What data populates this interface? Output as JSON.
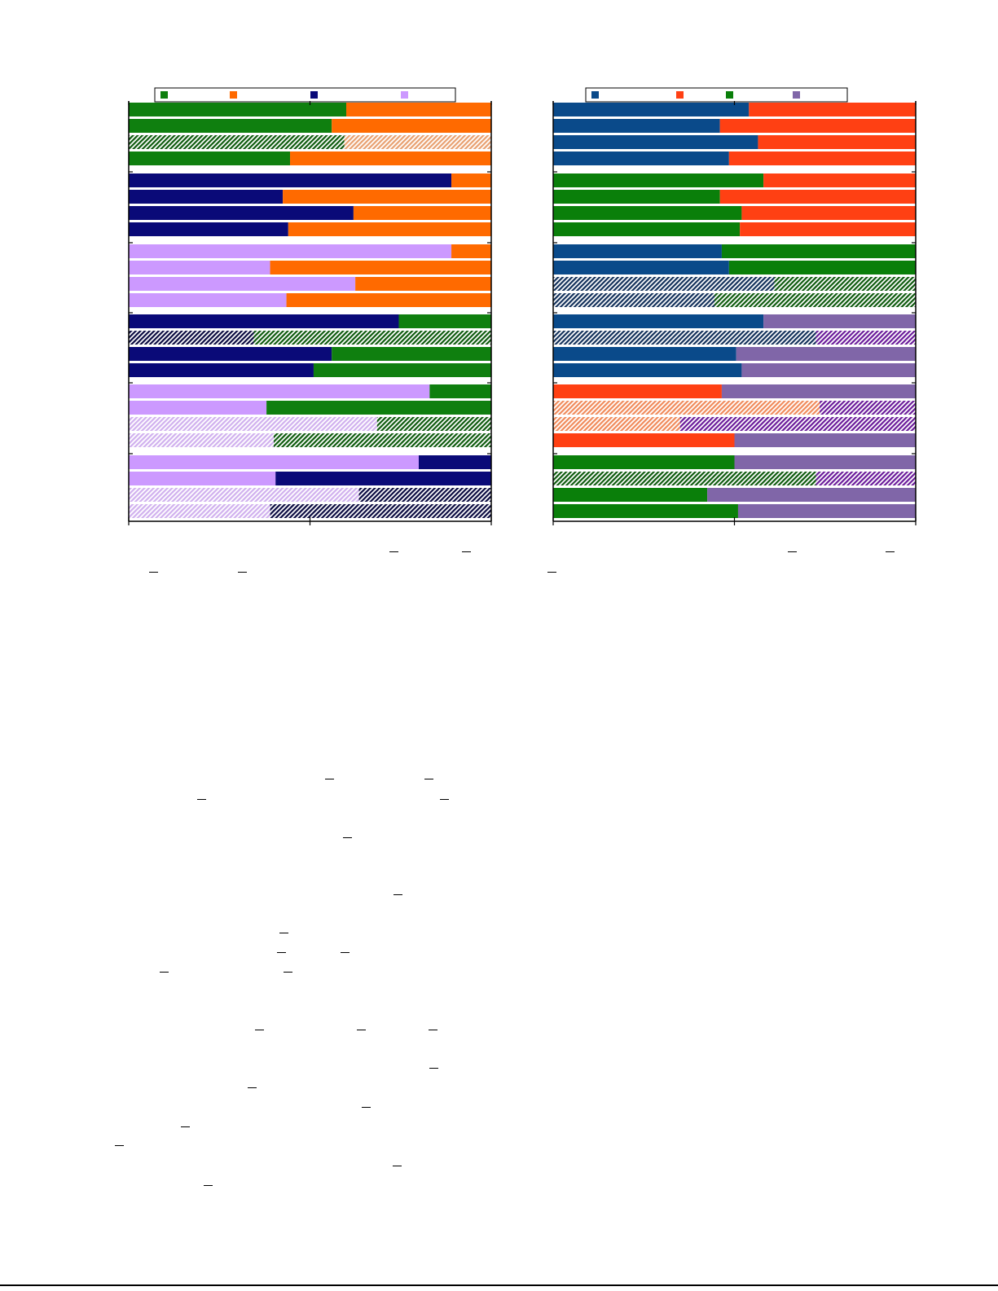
{
  "colors": {
    "left": {
      "green": "#0f7f0f",
      "orange": "#ff6a00",
      "navy": "#0a0a78",
      "lilac": "#cc99ff"
    },
    "right": {
      "blue": "#0a4a8a",
      "red": "#ff4013",
      "green": "#0a7f0a",
      "purple": "#8066a8"
    },
    "hatch": {
      "green": "#0d5a0d",
      "orange": "#e8a070",
      "navy": "#0a0a40",
      "lilac": "#d0b0ee",
      "blue": "#12305a",
      "red": "#f08a5a",
      "purple": "#6a1a9a"
    }
  },
  "chart_data": [
    {
      "type": "bar",
      "orientation": "horizontal",
      "stacked": true,
      "percent": true,
      "xlim": [
        0,
        1
      ],
      "grid": false,
      "legend": {
        "position": "top",
        "entries": [
          {
            "color": "green",
            "label": ""
          },
          {
            "color": "orange",
            "label": ""
          },
          {
            "color": "navy",
            "label": ""
          },
          {
            "color": "lilac",
            "label": ""
          }
        ]
      },
      "groups": [
        {
          "bars": [
            {
              "left": "green",
              "right": "orange",
              "value": 0.6,
              "hatched": false
            },
            {
              "left": "green",
              "right": "orange",
              "value": 0.56,
              "hatched": false
            },
            {
              "left": "green",
              "right": "orange",
              "value": 0.595,
              "hatched": true
            },
            {
              "left": "green",
              "right": "orange",
              "value": 0.445,
              "hatched": false
            }
          ]
        },
        {
          "bars": [
            {
              "left": "navy",
              "right": "orange",
              "value": 0.89,
              "hatched": false
            },
            {
              "left": "navy",
              "right": "orange",
              "value": 0.425,
              "hatched": false
            },
            {
              "left": "navy",
              "right": "orange",
              "value": 0.62,
              "hatched": false
            },
            {
              "left": "navy",
              "right": "orange",
              "value": 0.44,
              "hatched": false
            }
          ]
        },
        {
          "bars": [
            {
              "left": "lilac",
              "right": "orange",
              "value": 0.89,
              "hatched": false
            },
            {
              "left": "lilac",
              "right": "orange",
              "value": 0.39,
              "hatched": false
            },
            {
              "left": "lilac",
              "right": "orange",
              "value": 0.625,
              "hatched": false
            },
            {
              "left": "lilac",
              "right": "orange",
              "value": 0.435,
              "hatched": false
            }
          ]
        },
        {
          "bars": [
            {
              "left": "navy",
              "right": "green",
              "value": 0.745,
              "hatched": false
            },
            {
              "left": "navy",
              "right": "green",
              "value": 0.345,
              "hatched": true
            },
            {
              "left": "navy",
              "right": "green",
              "value": 0.56,
              "hatched": false
            },
            {
              "left": "navy",
              "right": "green",
              "value": 0.51,
              "hatched": false
            }
          ]
        },
        {
          "bars": [
            {
              "left": "lilac",
              "right": "green",
              "value": 0.83,
              "hatched": false
            },
            {
              "left": "lilac",
              "right": "green",
              "value": 0.38,
              "hatched": false
            },
            {
              "left": "lilac",
              "right": "green",
              "value": 0.685,
              "hatched": true
            },
            {
              "left": "lilac",
              "right": "green",
              "value": 0.4,
              "hatched": true
            }
          ]
        },
        {
          "bars": [
            {
              "left": "lilac",
              "right": "navy",
              "value": 0.8,
              "hatched": false
            },
            {
              "left": "lilac",
              "right": "navy",
              "value": 0.405,
              "hatched": false
            },
            {
              "left": "lilac",
              "right": "navy",
              "value": 0.635,
              "hatched": true
            },
            {
              "left": "lilac",
              "right": "navy",
              "value": 0.39,
              "hatched": true
            }
          ]
        }
      ]
    },
    {
      "type": "bar",
      "orientation": "horizontal",
      "stacked": true,
      "percent": true,
      "xlim": [
        0,
        1
      ],
      "grid": false,
      "legend": {
        "position": "top",
        "entries": [
          {
            "color": "blue",
            "label": ""
          },
          {
            "color": "red",
            "label": ""
          },
          {
            "color": "green",
            "label": ""
          },
          {
            "color": "purple",
            "label": ""
          }
        ]
      },
      "groups": [
        {
          "bars": [
            {
              "left": "blue",
              "right": "red",
              "value": 0.54,
              "hatched": false
            },
            {
              "left": "blue",
              "right": "red",
              "value": 0.46,
              "hatched": false
            },
            {
              "left": "blue",
              "right": "red",
              "value": 0.565,
              "hatched": false
            },
            {
              "left": "blue",
              "right": "red",
              "value": 0.485,
              "hatched": false
            }
          ]
        },
        {
          "bars": [
            {
              "left": "green",
              "right": "red",
              "value": 0.58,
              "hatched": false
            },
            {
              "left": "green",
              "right": "red",
              "value": 0.46,
              "hatched": false
            },
            {
              "left": "green",
              "right": "red",
              "value": 0.52,
              "hatched": false
            },
            {
              "left": "green",
              "right": "red",
              "value": 0.515,
              "hatched": false
            }
          ]
        },
        {
          "bars": [
            {
              "left": "blue",
              "right": "green",
              "value": 0.465,
              "hatched": false
            },
            {
              "left": "blue",
              "right": "green",
              "value": 0.485,
              "hatched": false
            },
            {
              "left": "blue",
              "right": "green",
              "value": 0.61,
              "hatched": true
            },
            {
              "left": "blue",
              "right": "green",
              "value": 0.445,
              "hatched": true
            }
          ]
        },
        {
          "bars": [
            {
              "left": "blue",
              "right": "purple",
              "value": 0.58,
              "hatched": false
            },
            {
              "left": "blue",
              "right": "purple",
              "value": 0.725,
              "hatched": true
            },
            {
              "left": "blue",
              "right": "purple",
              "value": 0.505,
              "hatched": false
            },
            {
              "left": "blue",
              "right": "purple",
              "value": 0.52,
              "hatched": false
            }
          ]
        },
        {
          "bars": [
            {
              "left": "red",
              "right": "purple",
              "value": 0.465,
              "hatched": false
            },
            {
              "left": "red",
              "right": "purple",
              "value": 0.735,
              "hatched": true
            },
            {
              "left": "red",
              "right": "purple",
              "value": 0.35,
              "hatched": true
            },
            {
              "left": "red",
              "right": "purple",
              "value": 0.5,
              "hatched": false
            }
          ]
        },
        {
          "bars": [
            {
              "left": "green",
              "right": "purple",
              "value": 0.5,
              "hatched": false
            },
            {
              "left": "green",
              "right": "purple",
              "value": 0.725,
              "hatched": true
            },
            {
              "left": "green",
              "right": "purple",
              "value": 0.425,
              "hatched": false
            },
            {
              "left": "green",
              "right": "purple",
              "value": 0.51,
              "hatched": false
            }
          ]
        }
      ]
    }
  ]
}
